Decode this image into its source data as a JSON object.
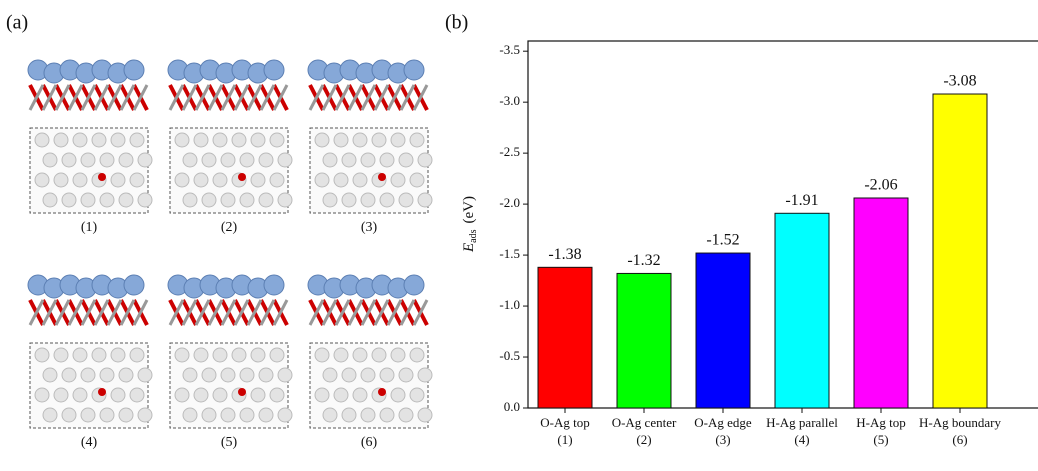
{
  "panel_a": {
    "label": "(a)",
    "structure_labels": [
      "(1)",
      "(2)",
      "(3)",
      "(4)",
      "(5)",
      "(6)"
    ]
  },
  "chart_data": {
    "type": "bar",
    "panel_label": "(b)",
    "y_label": {
      "symbol": "E",
      "subscript": "ads",
      "unit": "(eV)"
    },
    "categories": [
      "O-Ag top",
      "O-Ag center",
      "O-Ag edge",
      "H-Ag parallel",
      "H-Ag top",
      "H-Ag boundary"
    ],
    "category_numbers": [
      "(1)",
      "(2)",
      "(3)",
      "(4)",
      "(5)",
      "(6)"
    ],
    "values": [
      -1.38,
      -1.32,
      -1.52,
      -1.91,
      -2.06,
      -3.08
    ],
    "colors": [
      "#ff0000",
      "#00ff00",
      "#0000ff",
      "#00ffff",
      "#ff00ff",
      "#ffff00"
    ],
    "ylim": [
      0,
      -3.6
    ],
    "yticks": [
      {
        "value": 0,
        "label": "0.0"
      },
      -0.5,
      {
        "value": -1,
        "label": "-1.0"
      },
      -1.5,
      {
        "value": -2,
        "label": "-2.0"
      },
      -2.5,
      {
        "value": -3,
        "label": "-3.0"
      },
      -3.5
    ]
  }
}
